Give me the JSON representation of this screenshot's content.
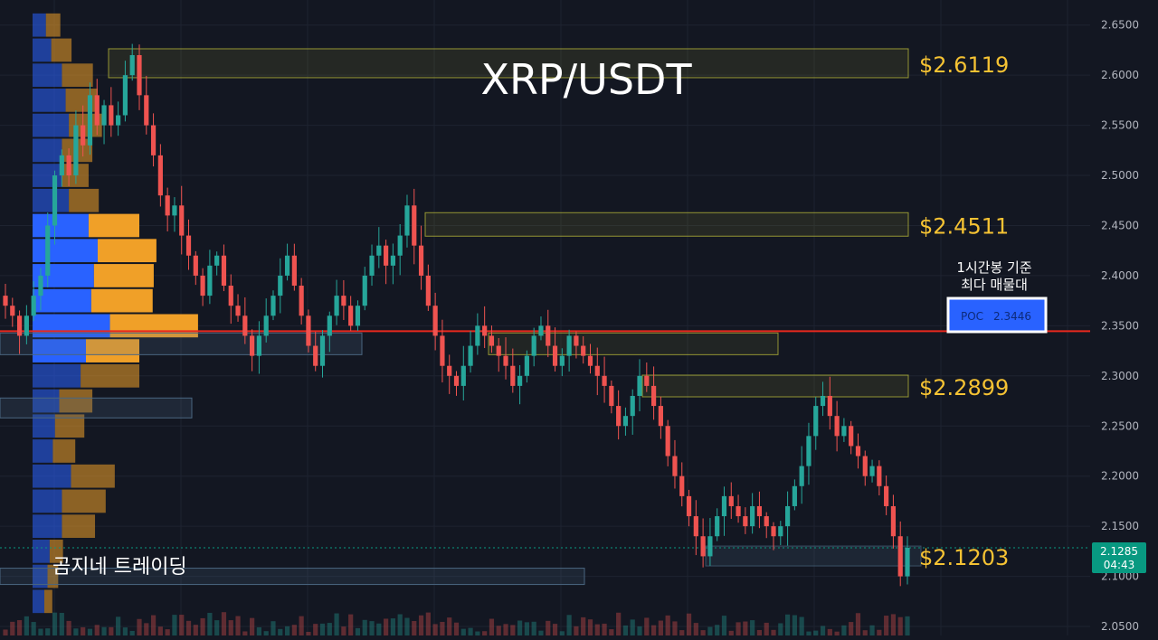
{
  "chart_data": {
    "type": "candlestick",
    "title": "XRP/USDT",
    "watermark": "곰지네 트레이딩",
    "ylim": [
      2.041,
      2.675
    ],
    "y_ticks": [
      "2.6500",
      "2.6000",
      "2.5500",
      "2.5000",
      "2.4500",
      "2.4000",
      "2.3500",
      "2.3000",
      "2.2500",
      "2.2000",
      "2.1500",
      "2.1000",
      "2.0500"
    ],
    "current_price": "2.1285",
    "countdown": "04:43",
    "poc": {
      "label": "POC",
      "value": "2.3446",
      "note_line1": "1시간봉 기준",
      "note_line2": "최다 매물대"
    },
    "levels": [
      {
        "price": 2.6119,
        "label": "$2.6119"
      },
      {
        "price": 2.4511,
        "label": "$2.4511"
      },
      {
        "price": 2.2899,
        "label": "$2.2899"
      },
      {
        "price": 2.1203,
        "label": "$2.1203"
      }
    ],
    "closes": [
      2.37,
      2.36,
      2.34,
      2.36,
      2.38,
      2.4,
      2.45,
      2.5,
      2.52,
      2.5,
      2.55,
      2.53,
      2.58,
      2.55,
      2.57,
      2.55,
      2.56,
      2.6,
      2.62,
      2.58,
      2.55,
      2.52,
      2.48,
      2.46,
      2.47,
      2.44,
      2.42,
      2.4,
      2.38,
      2.41,
      2.42,
      2.39,
      2.37,
      2.36,
      2.34,
      2.32,
      2.34,
      2.36,
      2.38,
      2.4,
      2.42,
      2.39,
      2.36,
      2.33,
      2.31,
      2.34,
      2.36,
      2.38,
      2.37,
      2.35,
      2.37,
      2.4,
      2.42,
      2.43,
      2.41,
      2.42,
      2.44,
      2.47,
      2.43,
      2.4,
      2.37,
      2.34,
      2.31,
      2.3,
      2.29,
      2.31,
      2.33,
      2.35,
      2.34,
      2.33,
      2.32,
      2.31,
      2.29,
      2.3,
      2.32,
      2.34,
      2.35,
      2.33,
      2.31,
      2.32,
      2.34,
      2.33,
      2.32,
      2.31,
      2.3,
      2.29,
      2.27,
      2.25,
      2.26,
      2.28,
      2.3,
      2.29,
      2.27,
      2.25,
      2.22,
      2.2,
      2.18,
      2.16,
      2.14,
      2.12,
      2.14,
      2.16,
      2.18,
      2.17,
      2.16,
      2.15,
      2.17,
      2.16,
      2.15,
      2.14,
      2.15,
      2.17,
      2.19,
      2.21,
      2.24,
      2.27,
      2.28,
      2.26,
      2.24,
      2.25,
      2.23,
      2.22,
      2.2,
      2.21,
      2.19,
      2.17,
      2.14,
      2.1,
      2.1285
    ],
    "volume_profile": [
      {
        "price": 2.65,
        "buy": 0.25,
        "sell": 0.27
      },
      {
        "price": 2.625,
        "buy": 0.35,
        "sell": 0.38
      },
      {
        "price": 2.6,
        "buy": 0.55,
        "sell": 0.58
      },
      {
        "price": 2.575,
        "buy": 0.62,
        "sell": 0.6
      },
      {
        "price": 2.55,
        "buy": 0.68,
        "sell": 0.62
      },
      {
        "price": 2.525,
        "buy": 0.55,
        "sell": 0.57
      },
      {
        "price": 2.5,
        "buy": 0.55,
        "sell": 0.5
      },
      {
        "price": 2.475,
        "buy": 0.68,
        "sell": 0.56
      },
      {
        "price": 2.45,
        "buy": 1.05,
        "sell": 0.95
      },
      {
        "price": 2.425,
        "buy": 1.22,
        "sell": 1.1
      },
      {
        "price": 2.4,
        "buy": 1.15,
        "sell": 1.12
      },
      {
        "price": 2.375,
        "buy": 1.1,
        "sell": 1.15
      },
      {
        "price": 2.35,
        "buy": 1.45,
        "sell": 1.65
      },
      {
        "price": 2.325,
        "buy": 1.0,
        "sell": 1.0
      },
      {
        "price": 2.3,
        "buy": 0.9,
        "sell": 1.1
      },
      {
        "price": 2.275,
        "buy": 0.5,
        "sell": 0.62
      },
      {
        "price": 2.25,
        "buy": 0.42,
        "sell": 0.55
      },
      {
        "price": 2.225,
        "buy": 0.38,
        "sell": 0.42
      },
      {
        "price": 2.2,
        "buy": 0.72,
        "sell": 0.82
      },
      {
        "price": 2.175,
        "buy": 0.55,
        "sell": 0.82
      },
      {
        "price": 2.15,
        "buy": 0.55,
        "sell": 0.62
      },
      {
        "price": 2.125,
        "buy": 0.32,
        "sell": 0.25
      },
      {
        "price": 2.1,
        "buy": 0.28,
        "sell": 0.2
      },
      {
        "price": 2.075,
        "buy": 0.22,
        "sell": 0.15
      }
    ],
    "colors": {
      "background": "#131722",
      "grid": "#1e2330",
      "up": "#26a69a",
      "down": "#ef5350",
      "level_label": "#f5c233",
      "level_box": "#c8c83a",
      "poc_line": "#e8281e",
      "poc_badge": "#2962ff",
      "vp_buy": "#2962ff",
      "vp_sell": "#f0a028",
      "price_tag": "#089981",
      "axis_text": "#b2b5be"
    }
  }
}
